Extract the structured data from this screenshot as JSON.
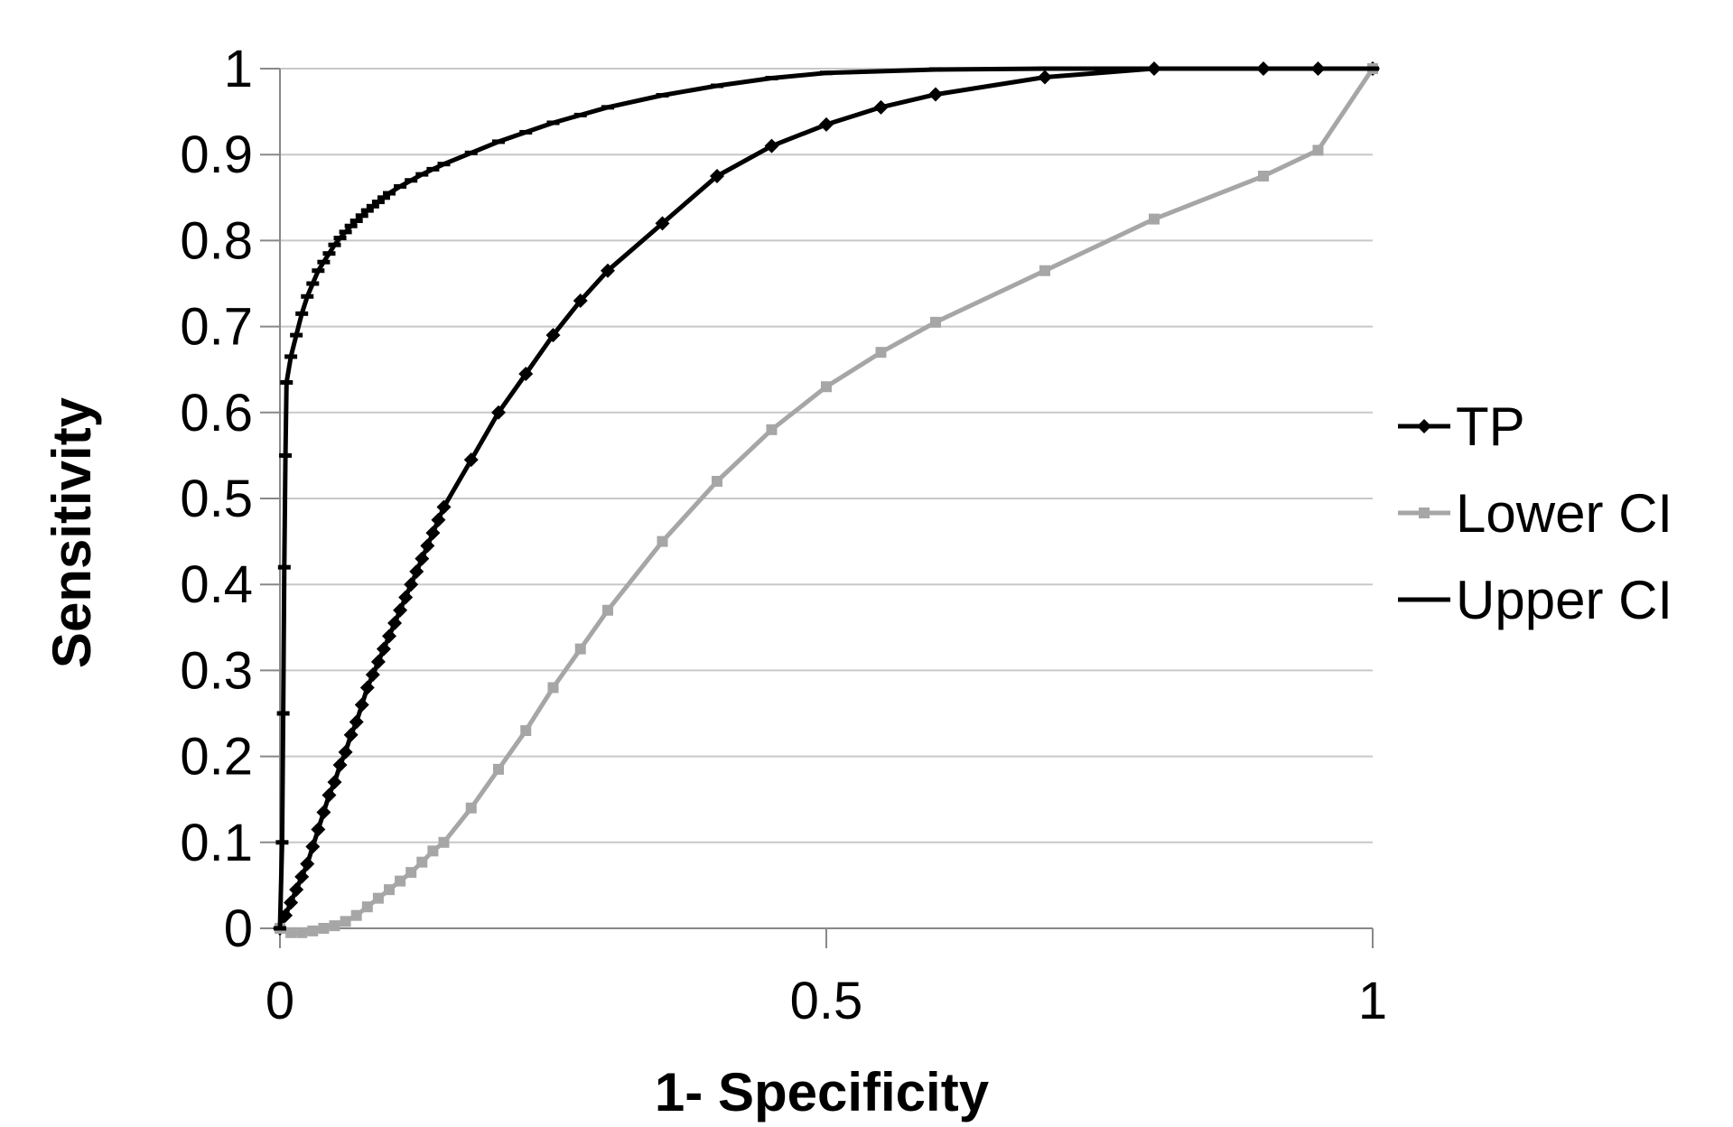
{
  "chart_data": {
    "type": "line",
    "title": "",
    "xlabel": "1- Specificity",
    "ylabel": "Sensitivity",
    "xlim": [
      0,
      1
    ],
    "ylim": [
      0,
      1
    ],
    "x_ticks": [
      "0",
      "0.5",
      "1"
    ],
    "y_ticks": [
      "0",
      "0.1",
      "0.2",
      "0.3",
      "0.4",
      "0.5",
      "0.6",
      "0.7",
      "0.8",
      "0.9",
      "1"
    ],
    "grid": "horizontal",
    "legend_position": "right",
    "series": [
      {
        "name": "TP",
        "color": "#000000",
        "marker": "diamond",
        "points": [
          [
            0,
            0
          ],
          [
            0.005,
            0.015
          ],
          [
            0.01,
            0.03
          ],
          [
            0.015,
            0.045
          ],
          [
            0.02,
            0.06
          ],
          [
            0.025,
            0.075
          ],
          [
            0.03,
            0.095
          ],
          [
            0.035,
            0.115
          ],
          [
            0.04,
            0.135
          ],
          [
            0.045,
            0.155
          ],
          [
            0.05,
            0.17
          ],
          [
            0.055,
            0.19
          ],
          [
            0.06,
            0.205
          ],
          [
            0.065,
            0.225
          ],
          [
            0.07,
            0.24
          ],
          [
            0.075,
            0.26
          ],
          [
            0.08,
            0.28
          ],
          [
            0.085,
            0.295
          ],
          [
            0.09,
            0.31
          ],
          [
            0.095,
            0.325
          ],
          [
            0.1,
            0.34
          ],
          [
            0.105,
            0.355
          ],
          [
            0.11,
            0.37
          ],
          [
            0.115,
            0.385
          ],
          [
            0.12,
            0.4
          ],
          [
            0.125,
            0.415
          ],
          [
            0.13,
            0.43
          ],
          [
            0.135,
            0.445
          ],
          [
            0.14,
            0.46
          ],
          [
            0.145,
            0.475
          ],
          [
            0.15,
            0.49
          ],
          [
            0.175,
            0.545
          ],
          [
            0.2,
            0.6
          ],
          [
            0.225,
            0.645
          ],
          [
            0.25,
            0.69
          ],
          [
            0.275,
            0.73
          ],
          [
            0.3,
            0.765
          ],
          [
            0.35,
            0.82
          ],
          [
            0.4,
            0.875
          ],
          [
            0.45,
            0.91
          ],
          [
            0.5,
            0.935
          ],
          [
            0.55,
            0.955
          ],
          [
            0.6,
            0.97
          ],
          [
            0.7,
            0.99
          ],
          [
            0.8,
            1.0
          ],
          [
            0.9,
            1.0
          ],
          [
            0.95,
            1.0
          ],
          [
            1.0,
            1.0
          ]
        ]
      },
      {
        "name": "Lower  CI",
        "color": "#a6a6a6",
        "marker": "square",
        "points": [
          [
            0,
            0
          ],
          [
            0.01,
            -0.005
          ],
          [
            0.02,
            -0.005
          ],
          [
            0.03,
            -0.003
          ],
          [
            0.04,
            0.0
          ],
          [
            0.05,
            0.003
          ],
          [
            0.06,
            0.008
          ],
          [
            0.07,
            0.015
          ],
          [
            0.08,
            0.025
          ],
          [
            0.09,
            0.035
          ],
          [
            0.1,
            0.045
          ],
          [
            0.11,
            0.055
          ],
          [
            0.12,
            0.065
          ],
          [
            0.13,
            0.077
          ],
          [
            0.14,
            0.09
          ],
          [
            0.15,
            0.1
          ],
          [
            0.175,
            0.14
          ],
          [
            0.2,
            0.185
          ],
          [
            0.225,
            0.23
          ],
          [
            0.25,
            0.28
          ],
          [
            0.275,
            0.325
          ],
          [
            0.3,
            0.37
          ],
          [
            0.35,
            0.45
          ],
          [
            0.4,
            0.52
          ],
          [
            0.45,
            0.58
          ],
          [
            0.5,
            0.63
          ],
          [
            0.55,
            0.67
          ],
          [
            0.6,
            0.705
          ],
          [
            0.7,
            0.765
          ],
          [
            0.8,
            0.825
          ],
          [
            0.9,
            0.875
          ],
          [
            0.95,
            0.905
          ],
          [
            1.0,
            1.0
          ]
        ]
      },
      {
        "name": "Upper CI",
        "color": "#000000",
        "marker": "dash",
        "points": [
          [
            0,
            0
          ],
          [
            0.002,
            0.1
          ],
          [
            0.003,
            0.25
          ],
          [
            0.004,
            0.42
          ],
          [
            0.005,
            0.55
          ],
          [
            0.006,
            0.635
          ],
          [
            0.01,
            0.665
          ],
          [
            0.015,
            0.69
          ],
          [
            0.02,
            0.715
          ],
          [
            0.025,
            0.735
          ],
          [
            0.03,
            0.75
          ],
          [
            0.035,
            0.765
          ],
          [
            0.04,
            0.775
          ],
          [
            0.045,
            0.785
          ],
          [
            0.05,
            0.795
          ],
          [
            0.055,
            0.803
          ],
          [
            0.06,
            0.81
          ],
          [
            0.065,
            0.817
          ],
          [
            0.07,
            0.823
          ],
          [
            0.075,
            0.829
          ],
          [
            0.08,
            0.835
          ],
          [
            0.085,
            0.84
          ],
          [
            0.09,
            0.845
          ],
          [
            0.095,
            0.85
          ],
          [
            0.1,
            0.855
          ],
          [
            0.11,
            0.863
          ],
          [
            0.12,
            0.87
          ],
          [
            0.13,
            0.877
          ],
          [
            0.14,
            0.883
          ],
          [
            0.15,
            0.889
          ],
          [
            0.175,
            0.902
          ],
          [
            0.2,
            0.915
          ],
          [
            0.225,
            0.926
          ],
          [
            0.25,
            0.937
          ],
          [
            0.275,
            0.946
          ],
          [
            0.3,
            0.955
          ],
          [
            0.35,
            0.969
          ],
          [
            0.4,
            0.98
          ],
          [
            0.45,
            0.989
          ],
          [
            0.5,
            0.995
          ],
          [
            0.6,
            0.999
          ],
          [
            0.7,
            1.0
          ],
          [
            0.8,
            1.0
          ],
          [
            0.9,
            1.0
          ],
          [
            1.0,
            1.0
          ]
        ]
      }
    ]
  }
}
